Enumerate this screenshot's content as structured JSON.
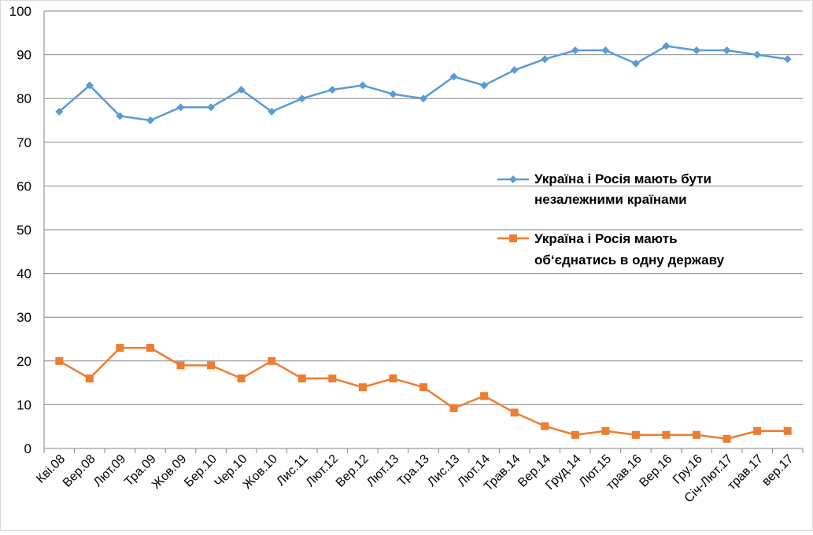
{
  "chart_data": {
    "type": "line",
    "title": "",
    "xlabel": "",
    "ylabel": "",
    "ylim": [
      0,
      100
    ],
    "yticks": [
      "0",
      "10",
      "20",
      "30",
      "40",
      "50",
      "60",
      "70",
      "80",
      "90",
      "100"
    ],
    "grid": true,
    "legend_position": "right-middle",
    "categories": [
      "Кві.08",
      "Вер.08",
      "Лют.09",
      "Тра.09",
      "Жов.09",
      "Бер.10",
      "Чер.10",
      "Жов.10",
      "Лис.11",
      "Лют.12",
      "Вер.12",
      "Лют.13",
      "Тра.13",
      "Лис.13",
      "Лют.14",
      "Трав.14",
      "Вер.14",
      "Груд.14",
      "Лют.15",
      "трав.16",
      "Вер.16",
      "Гру.16",
      "Січ-Лют.17",
      "трав.17",
      "вер.17"
    ],
    "series": [
      {
        "name_line1": "Україна і Росія мають бути",
        "name_line2": "незалежними країнами",
        "color": "#5B9BD5",
        "marker": "diamond",
        "values": [
          77,
          83,
          76,
          75,
          78,
          78,
          82,
          77,
          80,
          82,
          83,
          81,
          80,
          85,
          83,
          86.5,
          89,
          91,
          91,
          88,
          92,
          91,
          91,
          90,
          89
        ]
      },
      {
        "name_line1": "Україна і Росія мають",
        "name_line2": "об‘єднатись в одну державу",
        "color": "#ED7D31",
        "marker": "square",
        "values": [
          20,
          16,
          23,
          23,
          19,
          19,
          16,
          20,
          16,
          16,
          14,
          16,
          14,
          9.2,
          12,
          8.2,
          5.1,
          3.1,
          4,
          3.1,
          3.1,
          3.1,
          2.2,
          4,
          4
        ]
      }
    ]
  }
}
